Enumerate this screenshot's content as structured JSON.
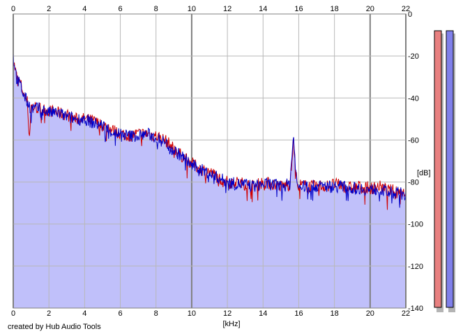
{
  "chart_data": {
    "type": "area",
    "xlabel": "[kHz]",
    "ylabel": "[dB]",
    "xlim": [
      0,
      22
    ],
    "ylim": [
      -140,
      0
    ],
    "x_ticks": [
      "0",
      "2",
      "4",
      "6",
      "8",
      "10",
      "12",
      "14",
      "16",
      "18",
      "20",
      "22"
    ],
    "y_ticks": [
      "0",
      "-20",
      "-40",
      "-60",
      "-80",
      "-100",
      "-120",
      "-140"
    ],
    "grid": true,
    "series": [
      {
        "color": "#d00000",
        "values": [
          [
            0.0,
            -22
          ],
          [
            0.2,
            -30
          ],
          [
            0.4,
            -33
          ],
          [
            0.6,
            -38
          ],
          [
            0.8,
            -42
          ],
          [
            0.9,
            -60
          ],
          [
            1.0,
            -44
          ],
          [
            1.5,
            -45
          ],
          [
            2.0,
            -46
          ],
          [
            2.5,
            -47
          ],
          [
            3.0,
            -48
          ],
          [
            3.5,
            -50
          ],
          [
            4.0,
            -50
          ],
          [
            4.5,
            -51
          ],
          [
            5.0,
            -53
          ],
          [
            5.5,
            -55
          ],
          [
            6.0,
            -57
          ],
          [
            6.5,
            -58
          ],
          [
            7.0,
            -57
          ],
          [
            7.5,
            -57
          ],
          [
            8.0,
            -58
          ],
          [
            8.5,
            -60
          ],
          [
            9.0,
            -64
          ],
          [
            9.5,
            -68
          ],
          [
            10.0,
            -71
          ],
          [
            10.5,
            -74
          ],
          [
            11.0,
            -75
          ],
          [
            11.5,
            -78
          ],
          [
            12.0,
            -80
          ],
          [
            12.5,
            -80
          ],
          [
            13.0,
            -81
          ],
          [
            13.5,
            -82
          ],
          [
            14.0,
            -80
          ],
          [
            14.5,
            -81
          ],
          [
            15.0,
            -82
          ],
          [
            15.5,
            -81
          ],
          [
            15.7,
            -60
          ],
          [
            15.9,
            -81
          ],
          [
            16.5,
            -82
          ],
          [
            17.0,
            -82
          ],
          [
            17.5,
            -82
          ],
          [
            18.0,
            -81
          ],
          [
            18.5,
            -82
          ],
          [
            19.0,
            -83
          ],
          [
            19.5,
            -82
          ],
          [
            20.0,
            -83
          ],
          [
            20.5,
            -82
          ],
          [
            21.0,
            -84
          ],
          [
            21.5,
            -84
          ],
          [
            22.0,
            -85
          ]
        ]
      },
      {
        "color": "#0000c8",
        "values": [
          [
            0.0,
            -20
          ],
          [
            0.2,
            -31
          ],
          [
            0.4,
            -34
          ],
          [
            0.6,
            -39
          ],
          [
            0.8,
            -42
          ],
          [
            1.0,
            -45
          ],
          [
            1.5,
            -45
          ],
          [
            2.0,
            -47
          ],
          [
            2.5,
            -47
          ],
          [
            3.0,
            -49
          ],
          [
            3.5,
            -50
          ],
          [
            4.0,
            -50
          ],
          [
            4.5,
            -52
          ],
          [
            5.0,
            -53
          ],
          [
            5.5,
            -56
          ],
          [
            6.0,
            -57
          ],
          [
            6.5,
            -58
          ],
          [
            7.0,
            -58
          ],
          [
            7.5,
            -57
          ],
          [
            8.0,
            -59
          ],
          [
            8.5,
            -61
          ],
          [
            9.0,
            -65
          ],
          [
            9.5,
            -68
          ],
          [
            10.0,
            -72
          ],
          [
            10.5,
            -74
          ],
          [
            11.0,
            -76
          ],
          [
            11.5,
            -78
          ],
          [
            12.0,
            -80
          ],
          [
            12.5,
            -81
          ],
          [
            13.0,
            -81
          ],
          [
            13.5,
            -82
          ],
          [
            14.0,
            -81
          ],
          [
            14.5,
            -81
          ],
          [
            15.0,
            -82
          ],
          [
            15.5,
            -81
          ],
          [
            15.7,
            -58
          ],
          [
            15.9,
            -82
          ],
          [
            16.5,
            -82
          ],
          [
            17.0,
            -82
          ],
          [
            17.5,
            -82
          ],
          [
            18.0,
            -82
          ],
          [
            18.5,
            -82
          ],
          [
            19.0,
            -83
          ],
          [
            19.5,
            -83
          ],
          [
            20.0,
            -84
          ],
          [
            20.5,
            -83
          ],
          [
            21.0,
            -85
          ],
          [
            21.5,
            -85
          ],
          [
            22.0,
            -86
          ]
        ]
      }
    ],
    "fill_color": "#c0c0fa",
    "meters": [
      {
        "color": "#e88080"
      },
      {
        "color": "#8080ea"
      }
    ]
  },
  "credit": "created by Hub Audio Tools"
}
